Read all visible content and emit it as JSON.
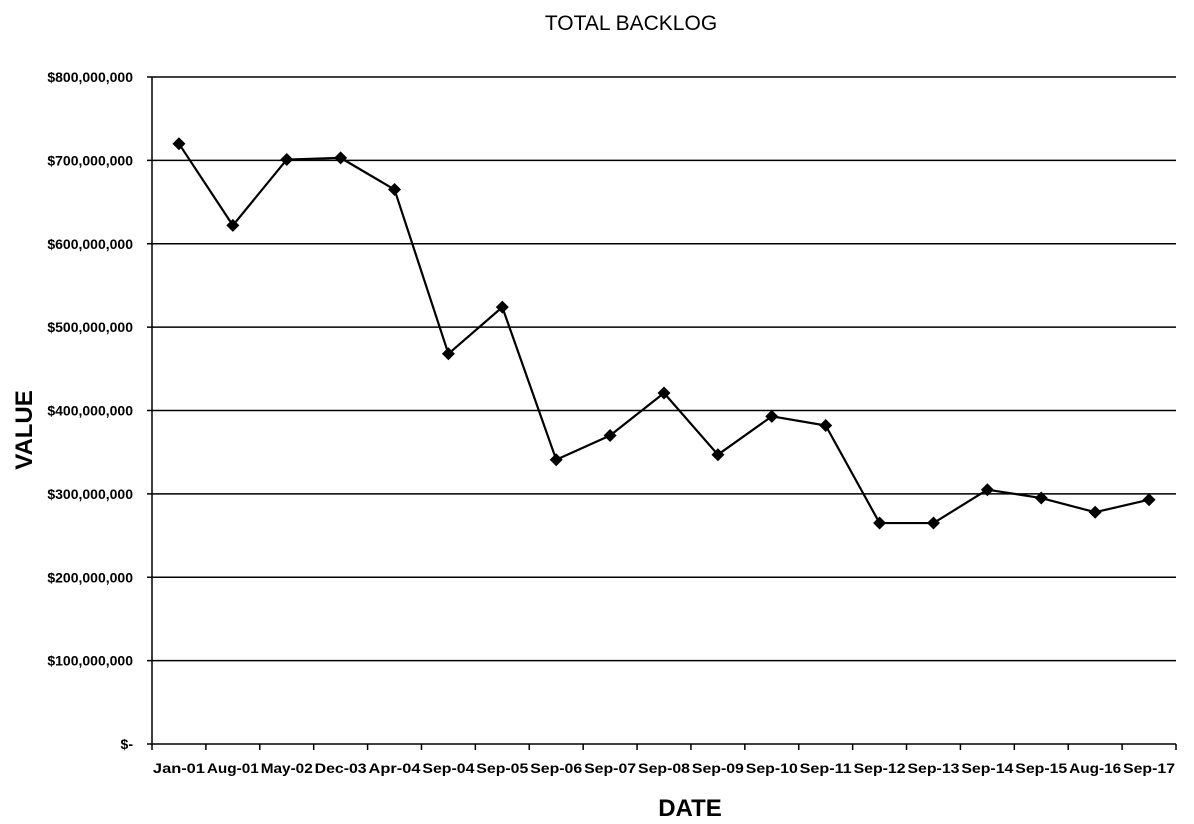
{
  "chart_data": {
    "type": "line",
    "title": "TOTAL BACKLOG",
    "xlabel": "DATE",
    "ylabel": "VALUE",
    "ylim": [
      0,
      800000000
    ],
    "y_ticks": [
      0,
      100000000,
      200000000,
      300000000,
      400000000,
      500000000,
      600000000,
      700000000,
      800000000
    ],
    "y_tick_labels": [
      "$-",
      "$100,000,000",
      "$200,000,000",
      "$300,000,000",
      "$400,000,000",
      "$500,000,000",
      "$600,000,000",
      "$700,000,000",
      "$800,000,000"
    ],
    "categories": [
      "Jan-01",
      "Aug-01",
      "May-02",
      "Dec-03",
      "Apr-04",
      "Sep-04",
      "Sep-05",
      "Sep-06",
      "Sep-07",
      "Sep-08",
      "Sep-09",
      "Sep-10",
      "Sep-11",
      "Sep-12",
      "Sep-13",
      "Sep-14",
      "Sep-15",
      "Aug-16",
      "Sep-17"
    ],
    "series": [
      {
        "values": [
          720000000,
          622000000,
          701000000,
          703000000,
          665000000,
          468000000,
          524000000,
          341000000,
          370000000,
          421000000,
          347000000,
          393000000,
          382000000,
          265000000,
          265000000,
          305000000,
          295000000,
          278000000,
          293000000
        ]
      }
    ],
    "grid": true,
    "marker": "diamond",
    "colors": {
      "line": "#000000",
      "grid": "#000000",
      "background": "#ffffff"
    }
  }
}
